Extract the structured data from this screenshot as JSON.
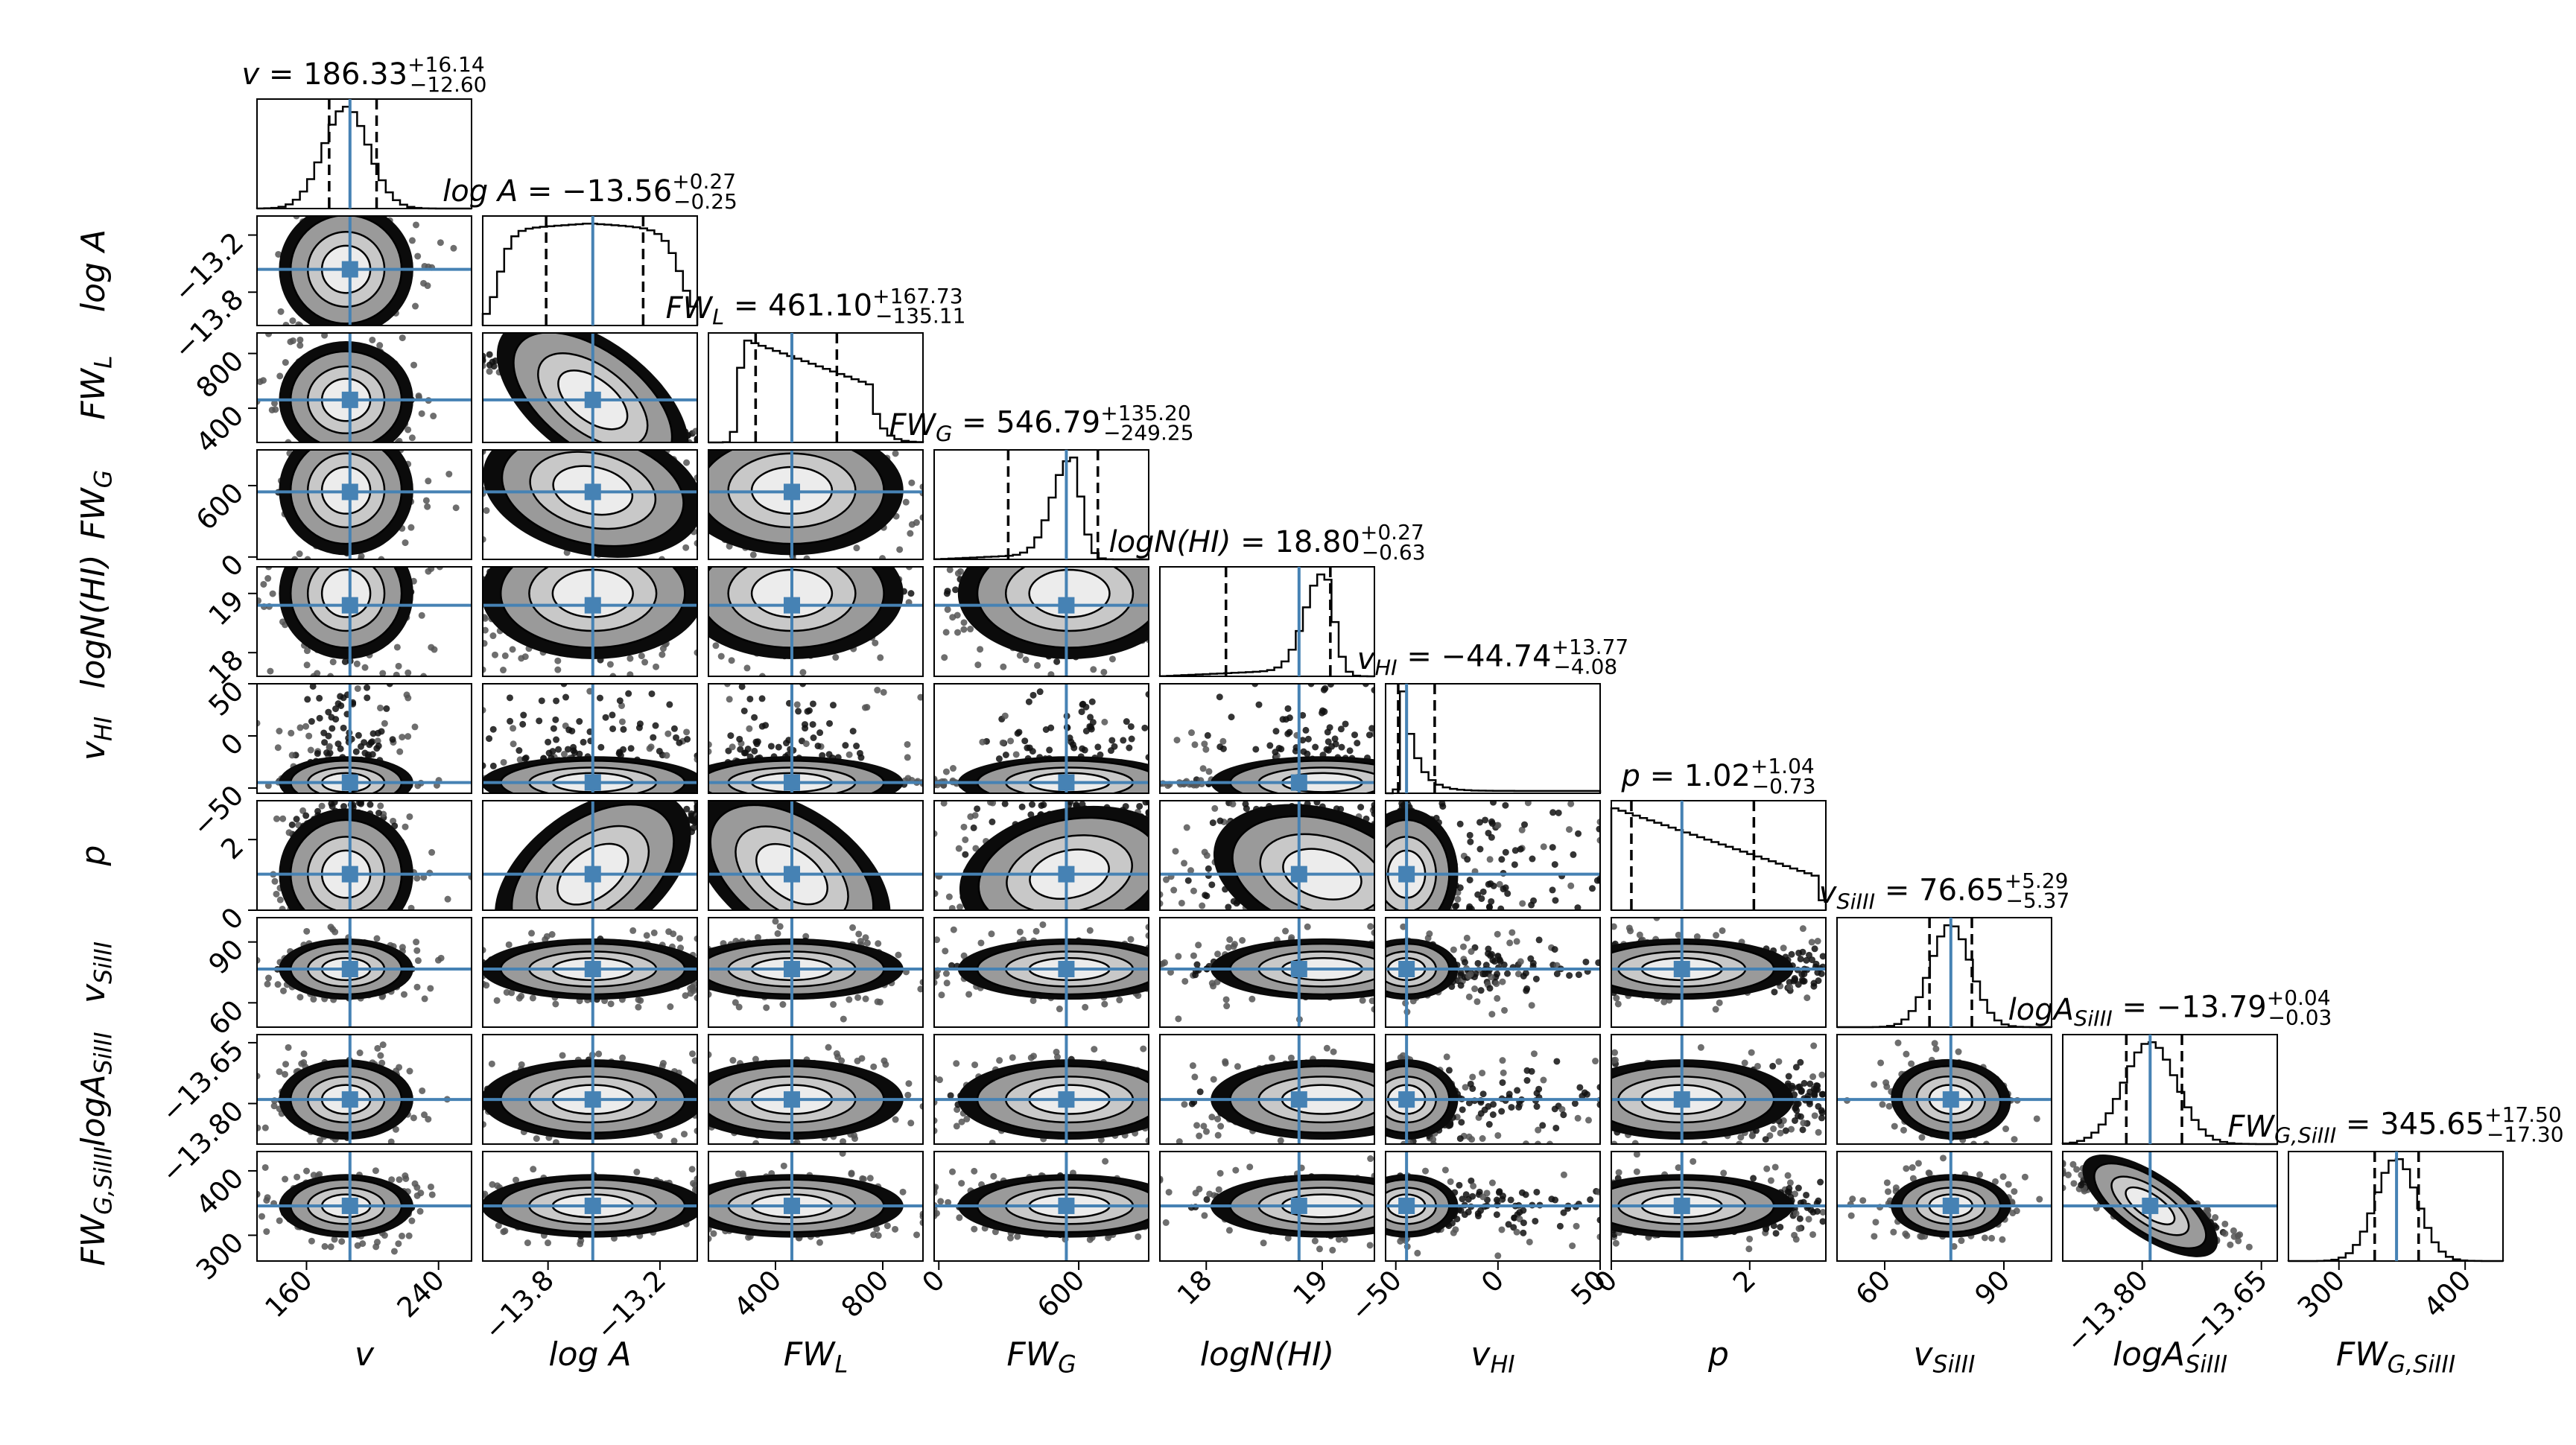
{
  "chart_data": {
    "type": "corner",
    "truth_color": "#4682b4",
    "parameters": [
      {
        "id": "v",
        "axis_label": "v",
        "title": "v = 186.33",
        "title_sup": "+16.14",
        "title_sub": "−12.60",
        "median": 186.33,
        "q_lo": 173.73,
        "q_hi": 202.47,
        "range": [
          130,
          260
        ],
        "ticks": [
          160,
          240
        ],
        "tick_labels": [
          "160",
          "240"
        ],
        "dist": "peak",
        "peak_at": 184
      },
      {
        "id": "logA",
        "axis_label": "log A",
        "title": "log A = −13.56",
        "title_sup": "+0.27",
        "title_sub": "−0.25",
        "median": -13.56,
        "q_lo": -13.81,
        "q_hi": -13.29,
        "range": [
          -14.15,
          -13.0
        ],
        "ticks": [
          -13.8,
          -13.2
        ],
        "tick_labels": [
          "−13.8",
          "−13.2"
        ],
        "dist": "flat"
      },
      {
        "id": "FWL",
        "axis_label": "FW_L",
        "title": "FW_L = 461.10",
        "title_sup": "+167.73",
        "title_sub": "−135.11",
        "median": 461.1,
        "q_lo": 325.99,
        "q_hi": 628.83,
        "range": [
          150,
          950
        ],
        "ticks": [
          400,
          800
        ],
        "tick_labels": [
          "400",
          "800"
        ],
        "dist": "skewright"
      },
      {
        "id": "FWG",
        "axis_label": "FW_G",
        "title": "FW_G = 546.79",
        "title_sup": "+135.20",
        "title_sub": "−249.25",
        "median": 546.79,
        "q_lo": 297.54,
        "q_hi": 681.99,
        "range": [
          -20,
          900
        ],
        "ticks": [
          0,
          600
        ],
        "tick_labels": [
          "0",
          "600"
        ],
        "dist": "skewleft",
        "peak_at": 560
      },
      {
        "id": "logNHI",
        "axis_label": "logN(HI)",
        "title": "logN(HI) = 18.80",
        "title_sup": "+0.27",
        "title_sub": "−0.63",
        "median": 18.8,
        "q_lo": 18.17,
        "q_hi": 19.07,
        "range": [
          17.6,
          19.45
        ],
        "ticks": [
          18,
          19
        ],
        "tick_labels": [
          "18",
          "19"
        ],
        "dist": "skewleft",
        "peak_at": 19.0
      },
      {
        "id": "vHI",
        "axis_label": "v_HI",
        "title": "v_HI = −44.74",
        "title_sup": "+13.77",
        "title_sub": "−4.08",
        "median": -44.74,
        "q_lo": -48.82,
        "q_hi": -30.97,
        "range": [
          -55,
          50
        ],
        "ticks": [
          -50,
          0,
          50
        ],
        "tick_labels": [
          "−50",
          "0",
          "50"
        ],
        "dist": "spikeleft"
      },
      {
        "id": "p",
        "axis_label": "p",
        "title": "p = 1.02",
        "title_sup": "+1.04",
        "title_sub": "−0.73",
        "median": 1.02,
        "q_lo": 0.29,
        "q_hi": 2.06,
        "range": [
          0,
          3.1
        ],
        "ticks": [
          0,
          2
        ],
        "tick_labels": [
          "0",
          "2"
        ],
        "dist": "decline"
      },
      {
        "id": "vSiIII",
        "axis_label": "v_SiIII",
        "title": "v_SiIII = 76.65",
        "title_sup": "+5.29",
        "title_sub": "−5.37",
        "median": 76.65,
        "q_lo": 71.28,
        "q_hi": 81.94,
        "range": [
          48,
          102
        ],
        "ticks": [
          60,
          90
        ],
        "tick_labels": [
          "60",
          "90"
        ],
        "dist": "peak",
        "peak_at": 76.65
      },
      {
        "id": "logASiIII",
        "axis_label": "logA_SiIII",
        "title": "logA_SiIII = −13.79",
        "title_sup": "+0.04",
        "title_sub": "−0.03",
        "median": -13.79,
        "q_lo": -13.82,
        "q_hi": -13.75,
        "range": [
          -13.9,
          -13.63
        ],
        "ticks": [
          -13.8,
          -13.65
        ],
        "tick_labels": [
          "−13.80",
          "−13.65"
        ],
        "dist": "peak",
        "peak_at": -13.79
      },
      {
        "id": "FWGSiIII",
        "axis_label": "FW_G,SiIII",
        "title": "FW_G,SiIII = 345.65",
        "title_sup": "+17.50",
        "title_sub": "−17.30",
        "median": 345.65,
        "q_lo": 328.35,
        "q_hi": 363.15,
        "range": [
          260,
          430
        ],
        "ticks": [
          300,
          400
        ],
        "tick_labels": [
          "300",
          "400"
        ],
        "dist": "peak",
        "peak_at": 345.65
      }
    ]
  }
}
